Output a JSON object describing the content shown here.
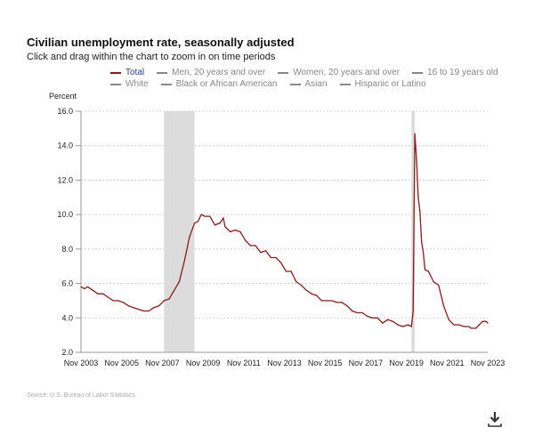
{
  "header": {
    "title": "Civilian unemployment rate, seasonally adjusted",
    "subtitle": "Click and drag within the chart to zoom in on time periods"
  },
  "legend": [
    {
      "label": "Total",
      "active": true
    },
    {
      "label": "Men, 20 years and over",
      "active": false
    },
    {
      "label": "Women, 20 years and over",
      "active": false
    },
    {
      "label": "16 to 19 years old",
      "active": false
    },
    {
      "label": "White",
      "active": false
    },
    {
      "label": "Black or African American",
      "active": false
    },
    {
      "label": "Asian",
      "active": false
    },
    {
      "label": "Hispanic or Latino",
      "active": false
    }
  ],
  "source": "Source: U.S. Bureau of Labor Statistics.",
  "colors": {
    "total": "#8b1a1a",
    "recession": "#dcdcdc",
    "grid": "#d0d0d0"
  },
  "chart_data": {
    "type": "line",
    "title": "Civilian unemployment rate, seasonally adjusted",
    "ylabel": "Percent",
    "ylim": [
      2.0,
      16.0
    ],
    "yticks": [
      "2.0",
      "4.0",
      "6.0",
      "8.0",
      "10.0",
      "12.0",
      "14.0",
      "16.0"
    ],
    "xlim": [
      "2003-11",
      "2023-11"
    ],
    "xticks": [
      "Nov 2003",
      "Nov 2005",
      "Nov 2007",
      "Nov 2009",
      "Nov 2011",
      "Nov 2013",
      "Nov 2015",
      "Nov 2017",
      "Nov 2019",
      "Nov 2021",
      "Nov 2023"
    ],
    "grid": true,
    "recessions": [
      [
        "2007-12",
        "2009-06"
      ],
      [
        "2020-02",
        "2020-04"
      ]
    ],
    "series": [
      {
        "name": "Total",
        "points": [
          [
            "2003-11",
            5.8
          ],
          [
            "2004-01",
            5.7
          ],
          [
            "2004-03",
            5.8
          ],
          [
            "2004-06",
            5.6
          ],
          [
            "2004-09",
            5.4
          ],
          [
            "2004-12",
            5.4
          ],
          [
            "2005-03",
            5.2
          ],
          [
            "2005-06",
            5.0
          ],
          [
            "2005-09",
            5.0
          ],
          [
            "2005-12",
            4.9
          ],
          [
            "2006-03",
            4.7
          ],
          [
            "2006-06",
            4.6
          ],
          [
            "2006-09",
            4.5
          ],
          [
            "2006-12",
            4.4
          ],
          [
            "2007-03",
            4.4
          ],
          [
            "2007-06",
            4.6
          ],
          [
            "2007-09",
            4.7
          ],
          [
            "2007-12",
            5.0
          ],
          [
            "2008-03",
            5.1
          ],
          [
            "2008-06",
            5.6
          ],
          [
            "2008-09",
            6.1
          ],
          [
            "2008-12",
            7.3
          ],
          [
            "2009-03",
            8.7
          ],
          [
            "2009-06",
            9.5
          ],
          [
            "2009-08",
            9.6
          ],
          [
            "2009-10",
            10.0
          ],
          [
            "2009-12",
            9.9
          ],
          [
            "2010-03",
            9.9
          ],
          [
            "2010-06",
            9.4
          ],
          [
            "2010-09",
            9.5
          ],
          [
            "2010-11",
            9.8
          ],
          [
            "2010-12",
            9.3
          ],
          [
            "2011-03",
            9.0
          ],
          [
            "2011-06",
            9.1
          ],
          [
            "2011-09",
            9.0
          ],
          [
            "2011-12",
            8.5
          ],
          [
            "2012-03",
            8.2
          ],
          [
            "2012-06",
            8.2
          ],
          [
            "2012-09",
            7.8
          ],
          [
            "2012-12",
            7.9
          ],
          [
            "2013-03",
            7.5
          ],
          [
            "2013-06",
            7.5
          ],
          [
            "2013-09",
            7.2
          ],
          [
            "2013-12",
            6.7
          ],
          [
            "2014-03",
            6.7
          ],
          [
            "2014-06",
            6.1
          ],
          [
            "2014-09",
            5.9
          ],
          [
            "2014-12",
            5.6
          ],
          [
            "2015-03",
            5.4
          ],
          [
            "2015-06",
            5.3
          ],
          [
            "2015-09",
            5.0
          ],
          [
            "2015-12",
            5.0
          ],
          [
            "2016-03",
            5.0
          ],
          [
            "2016-06",
            4.9
          ],
          [
            "2016-09",
            4.9
          ],
          [
            "2016-12",
            4.7
          ],
          [
            "2017-03",
            4.4
          ],
          [
            "2017-06",
            4.3
          ],
          [
            "2017-09",
            4.3
          ],
          [
            "2017-12",
            4.1
          ],
          [
            "2018-03",
            4.0
          ],
          [
            "2018-06",
            4.0
          ],
          [
            "2018-09",
            3.7
          ],
          [
            "2018-12",
            3.9
          ],
          [
            "2019-03",
            3.8
          ],
          [
            "2019-06",
            3.6
          ],
          [
            "2019-09",
            3.5
          ],
          [
            "2019-12",
            3.6
          ],
          [
            "2020-02",
            3.5
          ],
          [
            "2020-03",
            4.4
          ],
          [
            "2020-04",
            14.7
          ],
          [
            "2020-05",
            13.2
          ],
          [
            "2020-06",
            11.0
          ],
          [
            "2020-07",
            10.2
          ],
          [
            "2020-08",
            8.4
          ],
          [
            "2020-09",
            7.8
          ],
          [
            "2020-10",
            6.8
          ],
          [
            "2020-12",
            6.7
          ],
          [
            "2021-03",
            6.1
          ],
          [
            "2021-06",
            5.9
          ],
          [
            "2021-09",
            4.7
          ],
          [
            "2021-12",
            3.9
          ],
          [
            "2022-03",
            3.6
          ],
          [
            "2022-06",
            3.6
          ],
          [
            "2022-09",
            3.5
          ],
          [
            "2022-12",
            3.5
          ],
          [
            "2023-01",
            3.4
          ],
          [
            "2023-04",
            3.4
          ],
          [
            "2023-06",
            3.6
          ],
          [
            "2023-08",
            3.8
          ],
          [
            "2023-10",
            3.8
          ],
          [
            "2023-11",
            3.7
          ]
        ]
      }
    ]
  }
}
